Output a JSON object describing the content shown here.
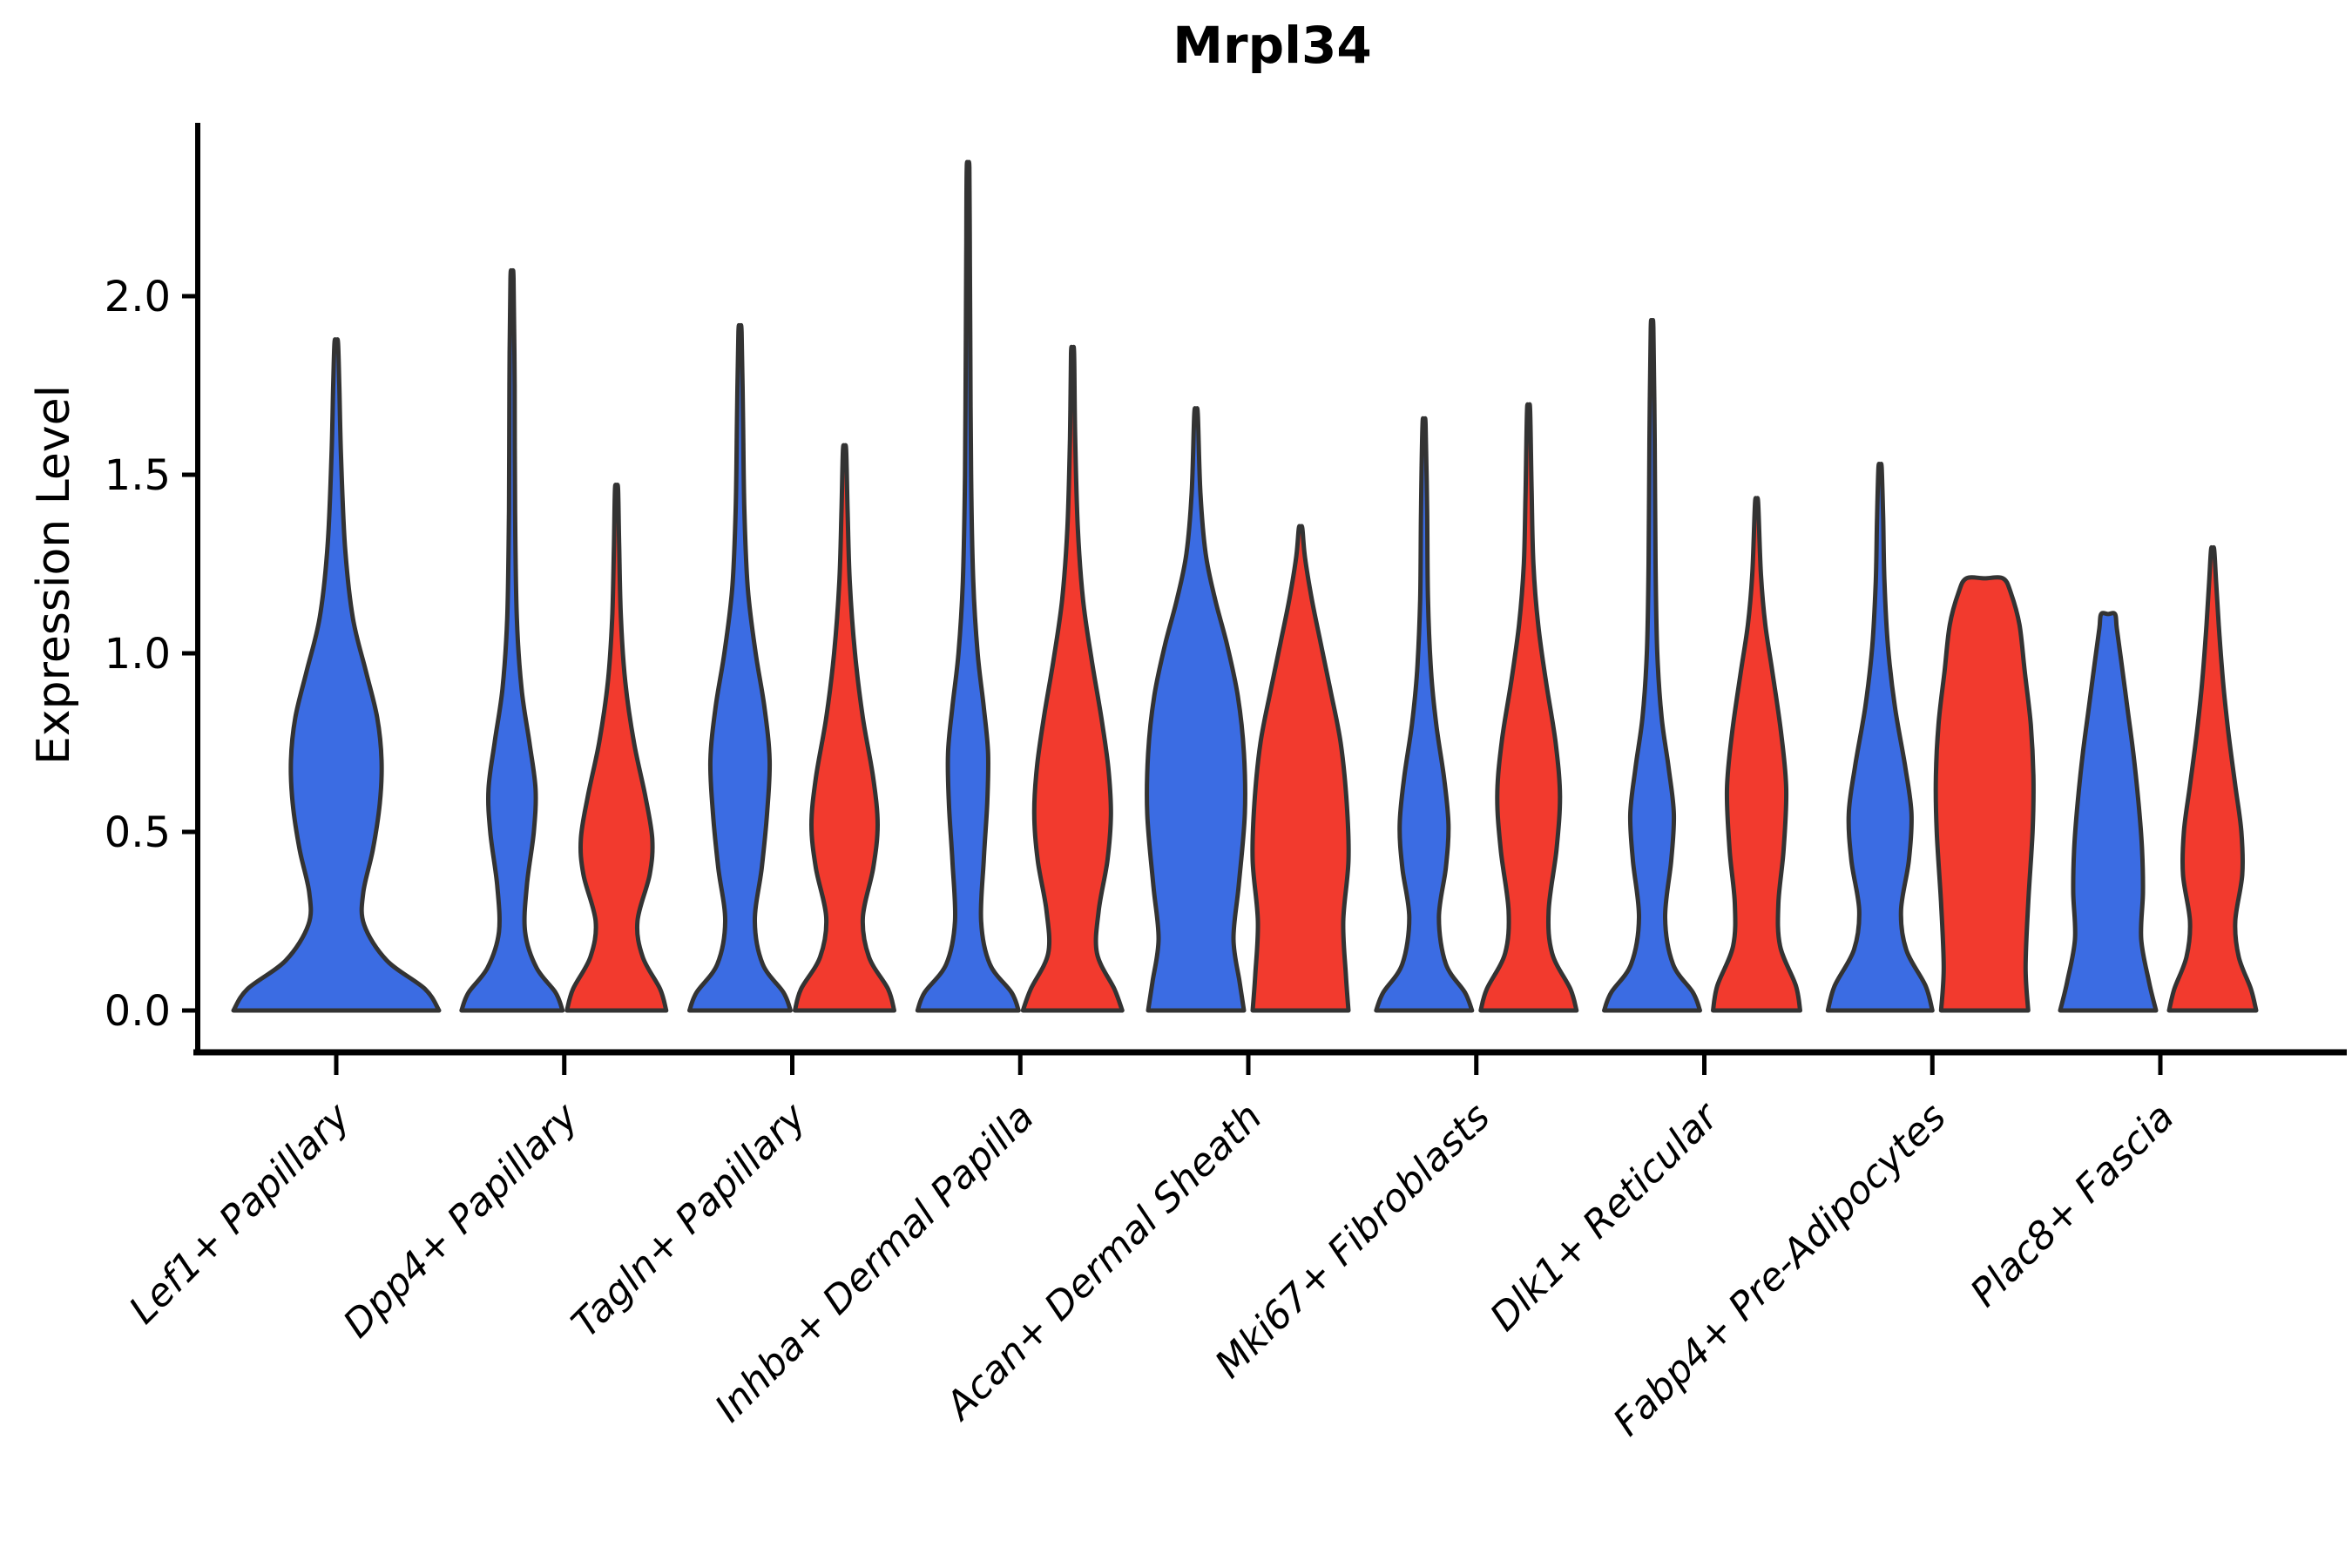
{
  "title": "Mrpl34",
  "y_axis": {
    "label": "Expression Level",
    "tick_labels": [
      "0.0",
      "0.5",
      "1.0",
      "1.5",
      "2.0"
    ],
    "tick_values": [
      0,
      0.5,
      1.0,
      1.5,
      2.0
    ]
  },
  "x_axis": {
    "tick_labels": [
      "Lef1+ Papillary",
      "Dpp4+ Papillary",
      "Tagln+ Papillary",
      "Inhba+ Dermal Papilla",
      "Acan+ Dermal Sheath",
      "Mki67+ Fibroblasts",
      "Dlk1+ Reticular",
      "Fabp4+ Pre-Adipocytes",
      "Plac8+ Fascia"
    ]
  },
  "colors": {
    "blue": "#3B6CE3",
    "red": "#F23A2E",
    "outline": "#333333",
    "axis": "#000000"
  },
  "chart_data": {
    "type": "violin",
    "title": "Mrpl34",
    "xlabel": "",
    "ylabel": "Expression Level",
    "ylim": [
      0,
      2.45
    ],
    "yticks": [
      0,
      0.5,
      1.0,
      1.5,
      2.0
    ],
    "grid": false,
    "legend": "none",
    "categories": [
      "Lef1+ Papillary",
      "Dpp4+ Papillary",
      "Tagln+ Papillary",
      "Inhba+ Dermal Papilla",
      "Acan+ Dermal Sheath",
      "Mki67+ Fibroblasts",
      "Dlk1+ Reticular",
      "Fabp4+ Pre-Adipocytes",
      "Plac8+ Fascia"
    ],
    "groups": [
      "blue",
      "red"
    ],
    "profile_format": "[expression_value, kde_halfwidth_px]",
    "series": [
      {
        "category": "Lef1+ Papillary",
        "group": "blue",
        "single": true,
        "max_expression": 1.87,
        "profile": [
          [
            0,
            118
          ],
          [
            0.06,
            102
          ],
          [
            0.14,
            58
          ],
          [
            0.24,
            32
          ],
          [
            0.33,
            31
          ],
          [
            0.45,
            42
          ],
          [
            0.58,
            50
          ],
          [
            0.7,
            52
          ],
          [
            0.82,
            47
          ],
          [
            0.95,
            34
          ],
          [
            1.1,
            19
          ],
          [
            1.3,
            10
          ],
          [
            1.55,
            5.5
          ],
          [
            1.75,
            3.5
          ],
          [
            1.87,
            2
          ]
        ]
      },
      {
        "category": "Dpp4+ Papillary",
        "group": "blue",
        "single": false,
        "max_expression": 2.05,
        "profile": [
          [
            0,
            58
          ],
          [
            0.05,
            50
          ],
          [
            0.12,
            28
          ],
          [
            0.22,
            15
          ],
          [
            0.35,
            17
          ],
          [
            0.5,
            25
          ],
          [
            0.62,
            27
          ],
          [
            0.75,
            20
          ],
          [
            0.9,
            11
          ],
          [
            1.1,
            5.5
          ],
          [
            1.4,
            3.5
          ],
          [
            1.75,
            3
          ],
          [
            2.05,
            1.8
          ]
        ]
      },
      {
        "category": "Dpp4+ Papillary",
        "group": "red",
        "single": false,
        "max_expression": 1.46,
        "profile": [
          [
            0,
            57
          ],
          [
            0.06,
            50
          ],
          [
            0.15,
            30
          ],
          [
            0.25,
            24
          ],
          [
            0.38,
            38
          ],
          [
            0.48,
            41
          ],
          [
            0.6,
            33
          ],
          [
            0.75,
            20
          ],
          [
            0.92,
            10
          ],
          [
            1.1,
            5
          ],
          [
            1.3,
            3
          ],
          [
            1.46,
            1.8
          ]
        ]
      },
      {
        "category": "Tagln+ Papillary",
        "group": "blue",
        "single": false,
        "max_expression": 1.9,
        "profile": [
          [
            0,
            58
          ],
          [
            0.05,
            50
          ],
          [
            0.13,
            26
          ],
          [
            0.25,
            17
          ],
          [
            0.4,
            25
          ],
          [
            0.55,
            31
          ],
          [
            0.7,
            34
          ],
          [
            0.85,
            28
          ],
          [
            1.0,
            18
          ],
          [
            1.18,
            9
          ],
          [
            1.4,
            5
          ],
          [
            1.65,
            3.5
          ],
          [
            1.9,
            1.8
          ]
        ]
      },
      {
        "category": "Tagln+ Papillary",
        "group": "red",
        "single": false,
        "max_expression": 1.57,
        "profile": [
          [
            0,
            57
          ],
          [
            0.06,
            50
          ],
          [
            0.15,
            28
          ],
          [
            0.26,
            21
          ],
          [
            0.4,
            33
          ],
          [
            0.52,
            38
          ],
          [
            0.65,
            33
          ],
          [
            0.82,
            21
          ],
          [
            1.0,
            12
          ],
          [
            1.2,
            6
          ],
          [
            1.4,
            3.5
          ],
          [
            1.57,
            1.8
          ]
        ]
      },
      {
        "category": "Inhba+ Dermal Papilla",
        "group": "blue",
        "single": false,
        "max_expression": 2.36,
        "profile": [
          [
            0,
            58
          ],
          [
            0.05,
            50
          ],
          [
            0.13,
            25
          ],
          [
            0.25,
            15
          ],
          [
            0.42,
            18
          ],
          [
            0.58,
            22
          ],
          [
            0.72,
            23
          ],
          [
            0.85,
            18
          ],
          [
            1.0,
            11
          ],
          [
            1.2,
            6
          ],
          [
            1.5,
            3.5
          ],
          [
            1.9,
            2.5
          ],
          [
            2.15,
            2
          ],
          [
            2.36,
            1.5
          ]
        ]
      },
      {
        "category": "Inhba+ Dermal Papilla",
        "group": "red",
        "single": false,
        "max_expression": 1.84,
        "profile": [
          [
            0,
            57
          ],
          [
            0.06,
            48
          ],
          [
            0.16,
            28
          ],
          [
            0.28,
            30
          ],
          [
            0.42,
            40
          ],
          [
            0.55,
            44
          ],
          [
            0.68,
            41
          ],
          [
            0.82,
            33
          ],
          [
            0.98,
            22
          ],
          [
            1.15,
            12
          ],
          [
            1.35,
            6
          ],
          [
            1.6,
            3
          ],
          [
            1.84,
            1.8
          ]
        ]
      },
      {
        "category": "Acan+ Dermal Sheath",
        "group": "blue",
        "single": false,
        "max_expression": 1.67,
        "profile": [
          [
            0,
            55
          ],
          [
            0.08,
            50
          ],
          [
            0.2,
            43
          ],
          [
            0.35,
            49
          ],
          [
            0.55,
            56
          ],
          [
            0.72,
            55
          ],
          [
            0.88,
            48
          ],
          [
            1.02,
            36
          ],
          [
            1.15,
            22
          ],
          [
            1.28,
            11
          ],
          [
            1.45,
            5
          ],
          [
            1.67,
            2
          ]
        ]
      },
      {
        "category": "Acan+ Dermal Sheath",
        "group": "red",
        "single": false,
        "max_expression": 1.35,
        "profile": [
          [
            0,
            55
          ],
          [
            0.1,
            52
          ],
          [
            0.25,
            49
          ],
          [
            0.42,
            55
          ],
          [
            0.58,
            53
          ],
          [
            0.75,
            46
          ],
          [
            0.9,
            34
          ],
          [
            1.03,
            23
          ],
          [
            1.15,
            13
          ],
          [
            1.27,
            5
          ],
          [
            1.35,
            2
          ]
        ]
      },
      {
        "category": "Mki67+ Fibroblasts",
        "group": "blue",
        "single": false,
        "max_expression": 1.64,
        "profile": [
          [
            0,
            55
          ],
          [
            0.05,
            47
          ],
          [
            0.13,
            25
          ],
          [
            0.26,
            17
          ],
          [
            0.4,
            25
          ],
          [
            0.52,
            28
          ],
          [
            0.65,
            23
          ],
          [
            0.8,
            14
          ],
          [
            0.95,
            8
          ],
          [
            1.15,
            4.5
          ],
          [
            1.4,
            3.5
          ],
          [
            1.64,
            1.8
          ]
        ]
      },
      {
        "category": "Mki67+ Fibroblasts",
        "group": "red",
        "single": false,
        "max_expression": 1.68,
        "profile": [
          [
            0,
            55
          ],
          [
            0.06,
            48
          ],
          [
            0.16,
            27
          ],
          [
            0.28,
            23
          ],
          [
            0.45,
            32
          ],
          [
            0.6,
            36
          ],
          [
            0.75,
            31
          ],
          [
            0.92,
            20
          ],
          [
            1.08,
            11
          ],
          [
            1.25,
            5.5
          ],
          [
            1.45,
            3.5
          ],
          [
            1.68,
            1.8
          ]
        ]
      },
      {
        "category": "Dlk1+ Reticular",
        "group": "blue",
        "single": false,
        "max_expression": 1.91,
        "profile": [
          [
            0,
            55
          ],
          [
            0.05,
            47
          ],
          [
            0.13,
            24
          ],
          [
            0.26,
            15
          ],
          [
            0.42,
            22
          ],
          [
            0.55,
            25
          ],
          [
            0.68,
            19
          ],
          [
            0.82,
            11
          ],
          [
            1.0,
            6
          ],
          [
            1.25,
            4
          ],
          [
            1.6,
            3
          ],
          [
            1.91,
            1.5
          ]
        ]
      },
      {
        "category": "Dlk1+ Reticular",
        "group": "red",
        "single": false,
        "max_expression": 1.42,
        "profile": [
          [
            0,
            50
          ],
          [
            0.07,
            45
          ],
          [
            0.18,
            27
          ],
          [
            0.3,
            25
          ],
          [
            0.45,
            31
          ],
          [
            0.62,
            34
          ],
          [
            0.78,
            28
          ],
          [
            0.95,
            18
          ],
          [
            1.08,
            10
          ],
          [
            1.22,
            5
          ],
          [
            1.42,
            1.8
          ]
        ]
      },
      {
        "category": "Fabp4+ Pre-Adipocytes",
        "group": "blue",
        "single": false,
        "max_expression": 1.52,
        "profile": [
          [
            0,
            60
          ],
          [
            0.07,
            52
          ],
          [
            0.17,
            30
          ],
          [
            0.28,
            24
          ],
          [
            0.42,
            33
          ],
          [
            0.55,
            36
          ],
          [
            0.68,
            29
          ],
          [
            0.85,
            17
          ],
          [
            1.02,
            9
          ],
          [
            1.2,
            5
          ],
          [
            1.38,
            3.5
          ],
          [
            1.52,
            1.8
          ]
        ]
      },
      {
        "category": "Fabp4+ Pre-Adipocytes",
        "group": "red",
        "single": false,
        "max_expression": 1.21,
        "flat_top": true,
        "profile": [
          [
            0,
            50
          ],
          [
            0.12,
            47
          ],
          [
            0.3,
            50
          ],
          [
            0.5,
            55
          ],
          [
            0.65,
            56
          ],
          [
            0.8,
            53
          ],
          [
            0.95,
            46
          ],
          [
            1.08,
            40
          ],
          [
            1.17,
            30
          ],
          [
            1.21,
            21
          ]
        ]
      },
      {
        "category": "Plac8+ Fascia",
        "group": "blue",
        "single": false,
        "max_expression": 1.11,
        "flat_top": true,
        "profile": [
          [
            0,
            55
          ],
          [
            0.08,
            47
          ],
          [
            0.2,
            38
          ],
          [
            0.33,
            40
          ],
          [
            0.45,
            39
          ],
          [
            0.58,
            35
          ],
          [
            0.72,
            29
          ],
          [
            0.85,
            22
          ],
          [
            0.98,
            15
          ],
          [
            1.07,
            10
          ],
          [
            1.11,
            8
          ]
        ]
      },
      {
        "category": "Plac8+ Fascia",
        "group": "red",
        "single": false,
        "max_expression": 1.29,
        "profile": [
          [
            0,
            50
          ],
          [
            0.06,
            44
          ],
          [
            0.15,
            30
          ],
          [
            0.25,
            26
          ],
          [
            0.38,
            34
          ],
          [
            0.5,
            33
          ],
          [
            0.63,
            26
          ],
          [
            0.78,
            18
          ],
          [
            0.92,
            12
          ],
          [
            1.08,
            7
          ],
          [
            1.2,
            4
          ],
          [
            1.29,
            1.8
          ]
        ]
      }
    ]
  }
}
